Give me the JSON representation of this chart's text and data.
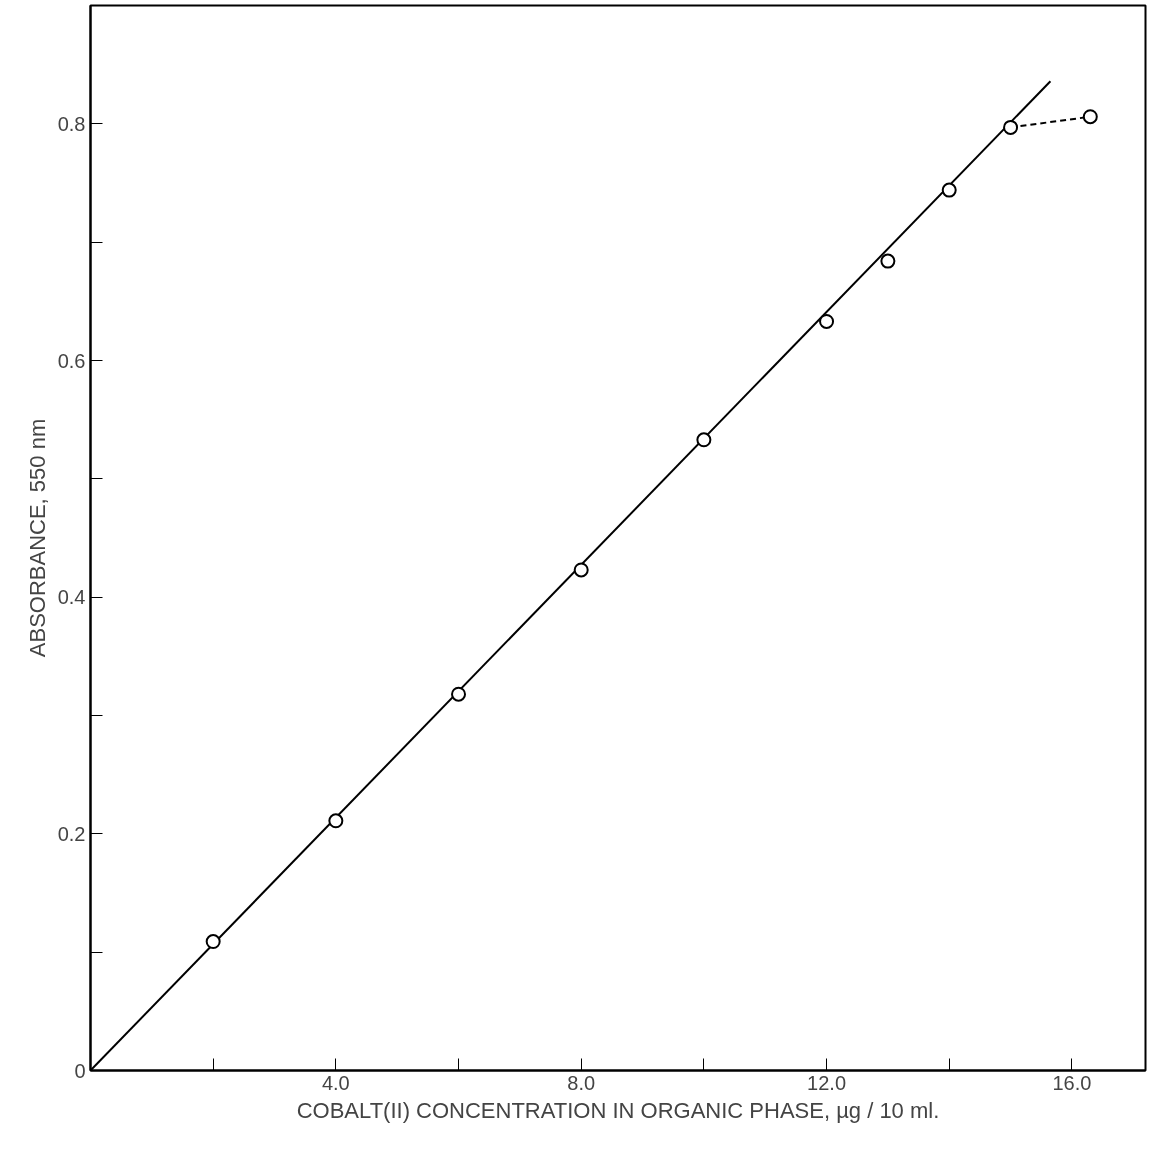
{
  "chart_data": {
    "type": "scatter",
    "xlabel": "COBALT(II) CONCENTRATION IN ORGANIC PHASE, µg / 10 ml.",
    "ylabel": "ABSORBANCE, 550 nm",
    "xlim": [
      0,
      17.2
    ],
    "ylim": [
      0,
      0.9
    ],
    "xticks": [
      {
        "value": 2,
        "label": null
      },
      {
        "value": 4,
        "label": "4.0"
      },
      {
        "value": 6,
        "label": null
      },
      {
        "value": 8,
        "label": "8.0"
      },
      {
        "value": 10,
        "label": null
      },
      {
        "value": 12,
        "label": "12.0"
      },
      {
        "value": 14,
        "label": null
      },
      {
        "value": 16,
        "label": "16.0"
      }
    ],
    "yticks": [
      0,
      {
        "value": 0.1,
        "label": null
      },
      0.2,
      {
        "value": 0.3,
        "label": null
      },
      0.4,
      {
        "value": 0.5,
        "label": null
      },
      0.6,
      {
        "value": 0.7,
        "label": null
      },
      0.8
    ],
    "grid": false,
    "series": [
      {
        "type": "line",
        "color": "#000000",
        "line_style": "solid",
        "marker": "none",
        "x": [
          0,
          15.65
        ],
        "values": [
          0,
          0.836
        ]
      },
      {
        "type": "line",
        "color": "#000000",
        "line_style": "dashed",
        "marker": "none",
        "x": [
          15,
          16.3
        ],
        "values": [
          0.797,
          0.806
        ]
      },
      {
        "type": "scatter",
        "color": "#000000",
        "marker": "circle",
        "x": [
          2,
          4,
          6,
          8,
          10,
          12,
          13,
          14,
          15,
          16.3
        ],
        "values": [
          0.109,
          0.211,
          0.318,
          0.423,
          0.533,
          0.633,
          0.684,
          0.744,
          0.797,
          0.806
        ]
      }
    ]
  }
}
